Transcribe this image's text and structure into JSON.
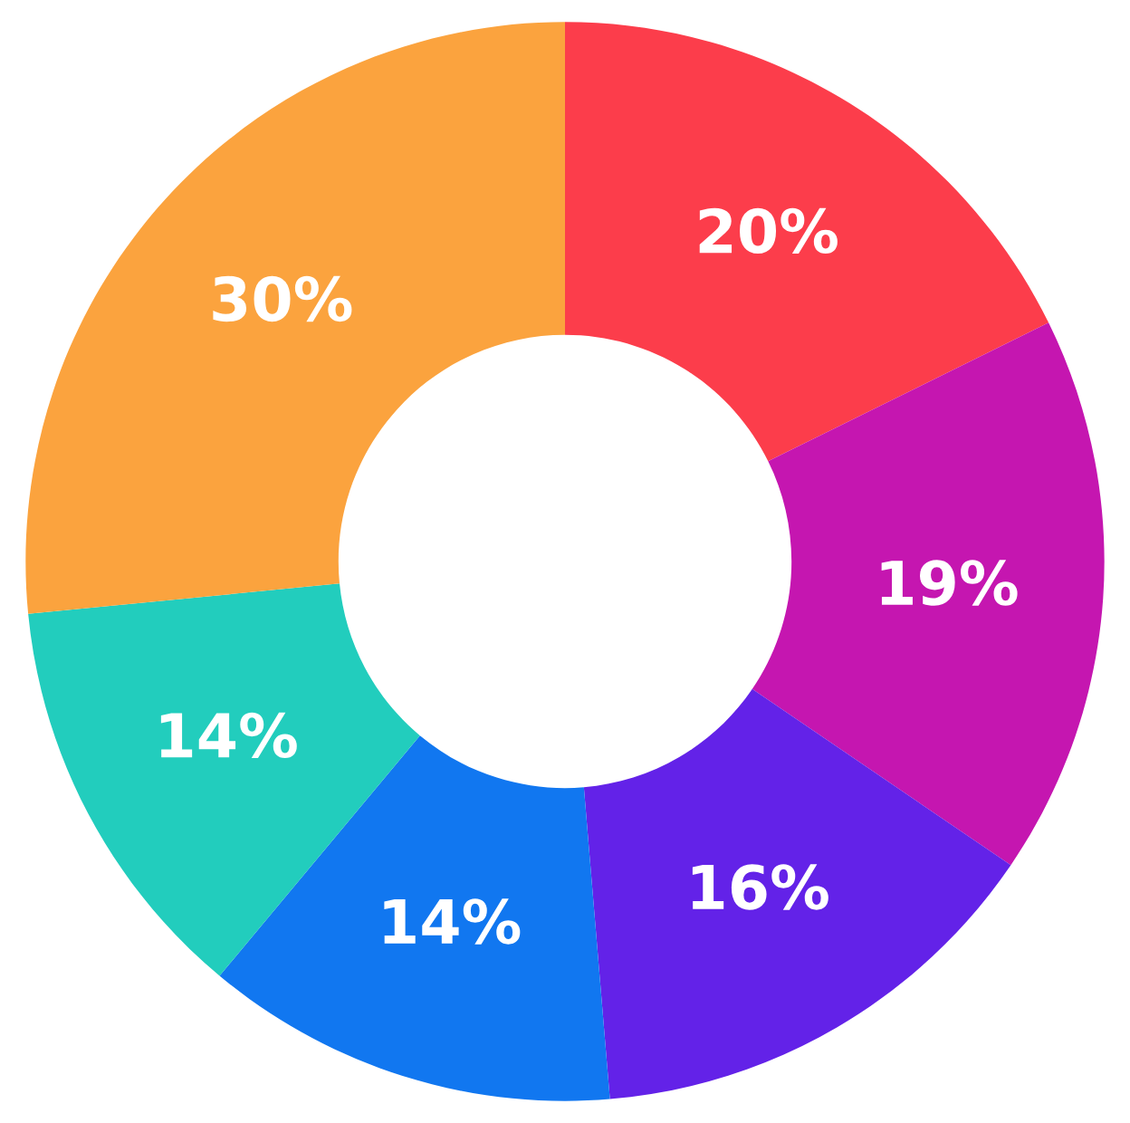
{
  "chart_data": {
    "type": "donut",
    "categories": [
      null,
      null,
      null,
      null,
      null,
      null
    ],
    "values": [
      20,
      19,
      16,
      14,
      14,
      30
    ],
    "value_labels": [
      "20%",
      "19%",
      "16%",
      "14%",
      "14%",
      "30%"
    ],
    "colors": [
      "#fc3d4b",
      "#c516b0",
      "#6322e8",
      "#1177f0",
      "#22cdbd",
      "#fba33e"
    ],
    "legend": false
  }
}
